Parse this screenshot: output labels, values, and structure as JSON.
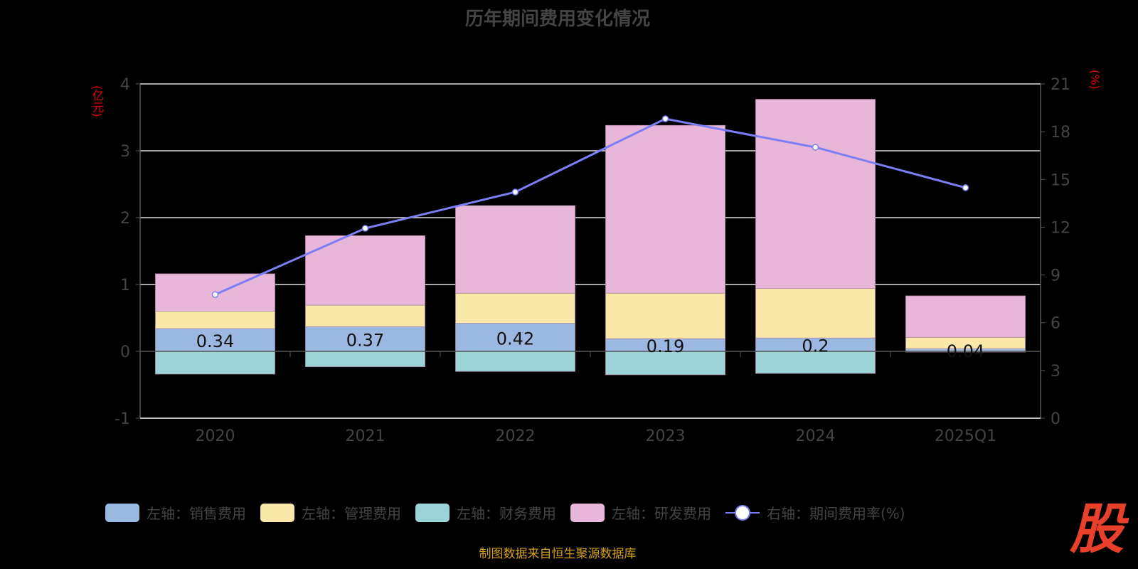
{
  "chart_data": {
    "type": "bar",
    "title": "历年期间费用变化情况",
    "ylabel_left": "(亿元)",
    "ylabel_right": "(%)",
    "categories": [
      "2020",
      "2021",
      "2022",
      "2023",
      "2024",
      "2025Q1"
    ],
    "ylim_left": [
      -1,
      4
    ],
    "yticks_left": [
      "-1",
      "0",
      "1",
      "2",
      "3",
      "4"
    ],
    "ylim_right": [
      0,
      21
    ],
    "yticks_right": [
      "0",
      "3",
      "6",
      "9",
      "12",
      "15",
      "18",
      "21"
    ],
    "series": [
      {
        "name": "左轴：销售费用",
        "color": "#9bb8e3",
        "values": [
          0.34,
          0.37,
          0.42,
          0.19,
          0.2,
          0.04
        ],
        "labels": [
          "0.34",
          "0.37",
          "0.42",
          "0.19",
          "0.2",
          "0.04"
        ]
      },
      {
        "name": "左轴：管理费用",
        "color": "#f9e8a8",
        "values": [
          0.26,
          0.32,
          0.45,
          0.68,
          0.74,
          0.17
        ]
      },
      {
        "name": "左轴：财务费用",
        "color": "#9ad4d6",
        "values": [
          -0.34,
          -0.23,
          -0.3,
          -0.35,
          -0.33,
          -0.01
        ]
      },
      {
        "name": "左轴：研发费用",
        "color": "#e8b6d8",
        "values": [
          0.56,
          1.04,
          1.31,
          2.51,
          2.83,
          0.62
        ]
      },
      {
        "name": "右轴：期间费用率(%)",
        "color": "#7b7ef5",
        "type": "line",
        "axis": "right",
        "values": [
          7.77,
          11.93,
          14.21,
          18.81,
          17.02,
          14.48
        ]
      }
    ]
  },
  "source": "制图数据来自恒生聚源数据库",
  "logo_text": "股"
}
